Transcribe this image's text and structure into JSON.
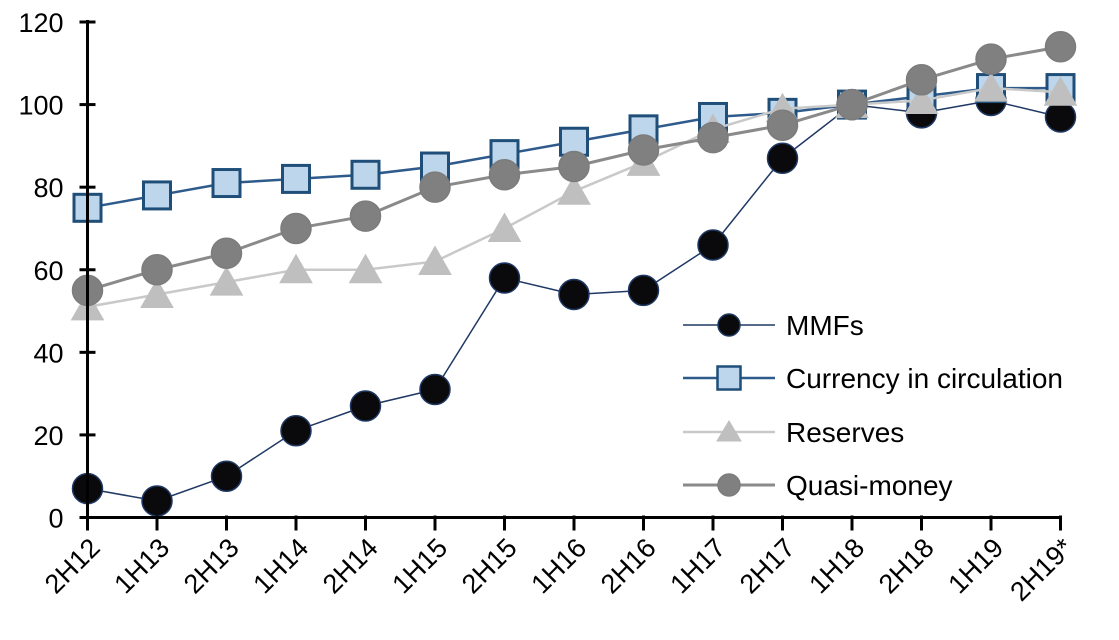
{
  "chart_data": {
    "type": "line",
    "title": "",
    "xlabel": "",
    "ylabel": "",
    "ylim": [
      0,
      120
    ],
    "yticks": [
      0,
      20,
      40,
      60,
      80,
      100,
      120
    ],
    "grid": false,
    "legend_position": "inside-right-middle",
    "categories": [
      "2H12",
      "1H13",
      "2H13",
      "1H14",
      "2H14",
      "1H15",
      "2H15",
      "1H16",
      "2H16",
      "1H17",
      "2H17",
      "1H18",
      "2H18",
      "1H19",
      "2H19*"
    ],
    "series": [
      {
        "name": "MMFs",
        "marker": "circle",
        "values": [
          7,
          4,
          10,
          21,
          27,
          31,
          58,
          54,
          55,
          66,
          87,
          100,
          98,
          101,
          97
        ],
        "line_color": "#1f3864",
        "line_width": 1.5,
        "marker_fill": "#0a0a0c",
        "marker_stroke": "#1f3864",
        "marker_size": 15
      },
      {
        "name": "Currency in circulation",
        "marker": "square",
        "values": [
          75,
          78,
          81,
          82,
          83,
          85,
          88,
          91,
          94,
          97,
          98,
          100,
          102,
          104,
          104
        ],
        "line_color": "#2e5b8c",
        "line_width": 2.5,
        "marker_fill": "#bdd6ec",
        "marker_stroke": "#1f4e79",
        "marker_size": 13.5
      },
      {
        "name": "Reserves",
        "marker": "triangle",
        "values": [
          51,
          54,
          57,
          60,
          60,
          62,
          70,
          79,
          86,
          94,
          99,
          100,
          101,
          104,
          103
        ],
        "line_color": "#c9c9c9",
        "line_width": 2.5,
        "marker_fill": "#bfbfbf",
        "marker_stroke": "#bfbfbf",
        "marker_size": 16
      },
      {
        "name": "Quasi-money",
        "marker": "circle",
        "values": [
          55,
          60,
          64,
          70,
          73,
          80,
          83,
          85,
          89,
          92,
          95,
          100,
          106,
          111,
          114
        ],
        "line_color": "#8a8a8a",
        "line_width": 3,
        "marker_fill": "#808080",
        "marker_stroke": "#7c7c7c",
        "marker_size": 15
      }
    ],
    "axis_color": "#000000",
    "background_color": "#ffffff"
  }
}
